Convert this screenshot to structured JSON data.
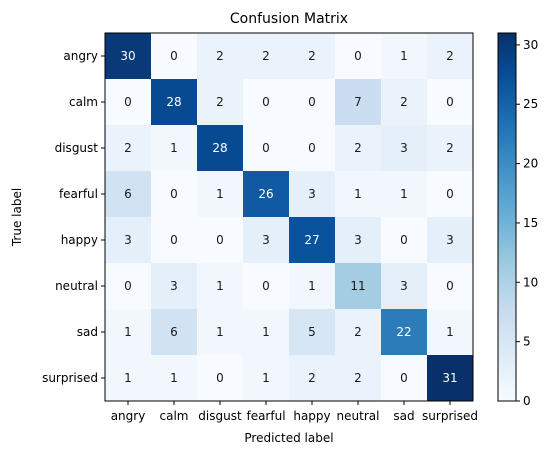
{
  "chart_data": {
    "type": "heatmap",
    "title": "Confusion Matrix",
    "xlabel": "Predicted label",
    "ylabel": "True label",
    "x_categories": [
      "angry",
      "calm",
      "disgust",
      "fearful",
      "happy",
      "neutral",
      "sad",
      "surprised"
    ],
    "y_categories": [
      "angry",
      "calm",
      "disgust",
      "fearful",
      "happy",
      "neutral",
      "sad",
      "surprised"
    ],
    "values": [
      [
        30,
        0,
        2,
        2,
        2,
        0,
        1,
        2
      ],
      [
        0,
        28,
        2,
        0,
        0,
        7,
        2,
        0
      ],
      [
        2,
        1,
        28,
        0,
        0,
        2,
        3,
        2
      ],
      [
        6,
        0,
        1,
        26,
        3,
        1,
        1,
        0
      ],
      [
        3,
        0,
        0,
        3,
        27,
        3,
        0,
        3
      ],
      [
        0,
        3,
        1,
        0,
        1,
        11,
        3,
        0
      ],
      [
        1,
        6,
        1,
        1,
        5,
        2,
        22,
        1
      ],
      [
        1,
        1,
        0,
        1,
        2,
        2,
        0,
        31
      ]
    ],
    "colormap": "Blues",
    "colorbar": {
      "range": [
        0,
        31
      ],
      "ticks": [
        0,
        5,
        10,
        15,
        20,
        25,
        30
      ]
    }
  }
}
